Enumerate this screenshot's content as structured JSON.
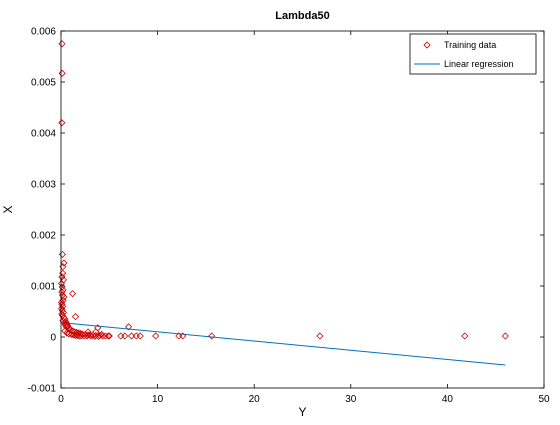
{
  "chart_data": {
    "type": "scatter",
    "title": "Lambda50",
    "xlabel": "Y",
    "ylabel": "X",
    "xlim": [
      0,
      50
    ],
    "ylim": [
      -0.001,
      0.006
    ],
    "x_ticks": [
      0,
      10,
      20,
      30,
      40,
      50
    ],
    "x_tick_labels": [
      "0",
      "10",
      "20",
      "30",
      "40",
      "50"
    ],
    "y_ticks": [
      -0.001,
      0,
      0.001,
      0.002,
      0.003,
      0.004,
      0.005,
      0.006
    ],
    "y_tick_labels": [
      "-0.001",
      "0",
      "0.001",
      "0.002",
      "0.003",
      "0.004",
      "0.005",
      "0.006"
    ],
    "grid": false,
    "legend_position": "top-right",
    "colors": {
      "training": "#cc0000",
      "regression": "#0072bd"
    },
    "series": [
      {
        "name": "Training data",
        "kind": "scatter",
        "marker": "diamond",
        "points": [
          [
            0.1,
            0.00575
          ],
          [
            0.12,
            0.00517
          ],
          [
            0.08,
            0.0042
          ],
          [
            0.15,
            0.00162
          ],
          [
            0.3,
            0.00145
          ],
          [
            0.2,
            0.00138
          ],
          [
            0.18,
            0.00125
          ],
          [
            0.1,
            0.00118
          ],
          [
            0.25,
            0.00112
          ],
          [
            0.05,
            0.00105
          ],
          [
            0.12,
            0.00098
          ],
          [
            0.2,
            0.00092
          ],
          [
            0.08,
            0.00088
          ],
          [
            0.15,
            0.00082
          ],
          [
            0.3,
            0.00078
          ],
          [
            0.22,
            0.00072
          ],
          [
            0.05,
            0.00068
          ],
          [
            0.1,
            0.00064
          ],
          [
            0.18,
            0.0006
          ],
          [
            0.06,
            0.00056
          ],
          [
            0.12,
            0.00052
          ],
          [
            0.25,
            0.00048
          ],
          [
            0.09,
            0.00045
          ],
          [
            0.16,
            0.00042
          ],
          [
            0.3,
            0.00038
          ],
          [
            0.4,
            0.00035
          ],
          [
            0.2,
            0.00032
          ],
          [
            0.5,
            0.0003
          ],
          [
            0.35,
            0.00028
          ],
          [
            0.6,
            0.00026
          ],
          [
            0.45,
            0.00024
          ],
          [
            0.7,
            0.00022
          ],
          [
            0.55,
            0.0002
          ],
          [
            0.8,
            0.00018
          ],
          [
            0.9,
            0.00016
          ],
          [
            1.0,
            0.00014
          ],
          [
            1.2,
            0.00012
          ],
          [
            1.4,
            0.0001
          ],
          [
            1.6,
            9e-05
          ],
          [
            1.8,
            8e-05
          ],
          [
            2.0,
            7e-05
          ],
          [
            2.2,
            6e-05
          ],
          [
            2.5,
            5e-05
          ],
          [
            2.8,
            4e-05
          ],
          [
            3.0,
            4e-05
          ],
          [
            3.3,
            3e-05
          ],
          [
            3.6,
            3e-05
          ],
          [
            4.0,
            3e-05
          ],
          [
            4.3,
            2e-05
          ],
          [
            4.6,
            2e-05
          ],
          [
            4.9,
            2e-05
          ],
          [
            0.4,
            0.00012
          ],
          [
            0.6,
            8e-05
          ],
          [
            0.8,
            6e-05
          ],
          [
            1.1,
            5e-05
          ],
          [
            1.3,
            4e-05
          ],
          [
            1.5,
            3e-05
          ],
          [
            1.7,
            3e-05
          ],
          [
            1.9,
            2e-05
          ],
          [
            2.1,
            2e-05
          ],
          [
            2.4,
            2e-05
          ],
          [
            2.7,
            2e-05
          ],
          [
            3.1,
            2e-05
          ],
          [
            3.5,
            1e-05
          ],
          [
            3.9,
            1e-05
          ],
          [
            1.2,
            0.00085
          ],
          [
            1.5,
            0.0004
          ],
          [
            2.8,
            0.0001
          ],
          [
            3.8,
            0.00018
          ],
          [
            3.6,
            0.0001
          ],
          [
            4.2,
            5e-05
          ],
          [
            5.0,
            2e-05
          ],
          [
            6.2,
            2e-05
          ],
          [
            6.6,
            2e-05
          ],
          [
            7.0,
            0.0002
          ],
          [
            7.3,
            2e-05
          ],
          [
            7.8,
            2e-05
          ],
          [
            8.2,
            2e-05
          ],
          [
            9.8,
            2e-05
          ],
          [
            12.2,
            2e-05
          ],
          [
            12.6,
            2e-05
          ],
          [
            15.6,
            2e-05
          ],
          [
            26.8,
            2e-05
          ],
          [
            41.8,
            2e-05
          ],
          [
            46.0,
            2e-05
          ]
        ]
      },
      {
        "name": "Linear regression",
        "kind": "line",
        "points": [
          [
            0.2,
            0.00028
          ],
          [
            46.0,
            -0.00055
          ]
        ]
      }
    ]
  }
}
